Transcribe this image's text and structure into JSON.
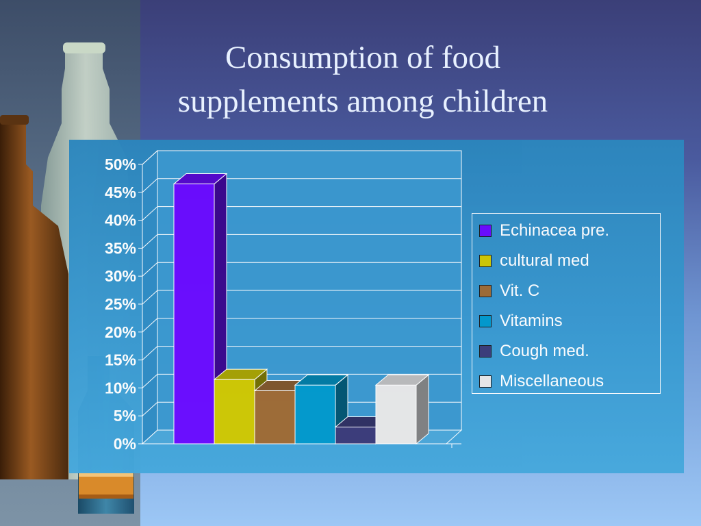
{
  "slide": {
    "title_line1": "Consumption of food",
    "title_line2": "supplements among children"
  },
  "chart_data": {
    "type": "bar",
    "title": "Consumption of food supplements among children",
    "categories": [
      "Echinacea pre.",
      "cultural med",
      "Vit. C",
      "Vitamins",
      "Cough med.",
      "Miscellaneous"
    ],
    "values": [
      0.465,
      0.115,
      0.095,
      0.105,
      0.03,
      0.105
    ],
    "colors": [
      "#6a0aff",
      "#cfc800",
      "#9e6a33",
      "#0099cc",
      "#3a3a78",
      "#e8e8e8"
    ],
    "ylim": [
      0,
      0.5
    ],
    "yticks": [
      "0%",
      "5%",
      "10%",
      "15%",
      "20%",
      "25%",
      "30%",
      "35%",
      "40%",
      "45%",
      "50%"
    ],
    "legend_position": "right",
    "grid": true,
    "style": "3d-column"
  }
}
